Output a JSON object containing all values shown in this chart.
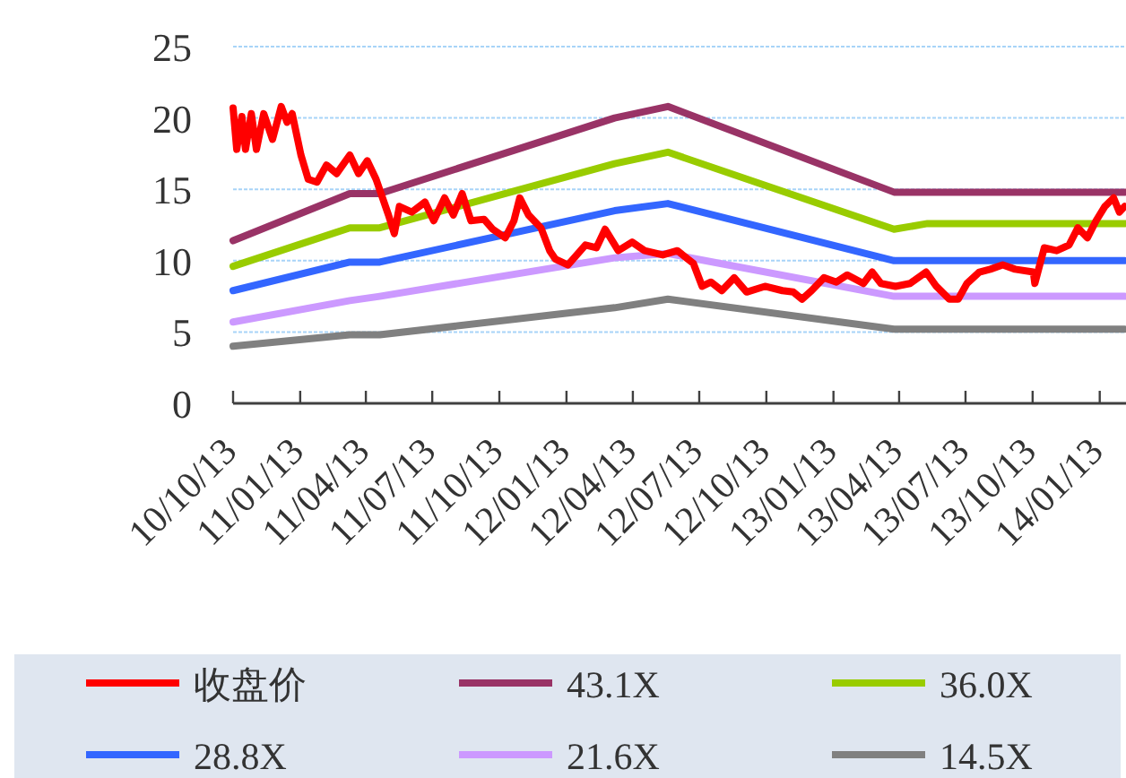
{
  "chart_data": {
    "type": "line",
    "xlim": [
      "2010-10-13",
      "2014-02-18"
    ],
    "ylim": [
      0,
      25
    ],
    "yticks": [
      0,
      5,
      10,
      15,
      20,
      25
    ],
    "xticks": [
      {
        "value": "2010-10-13",
        "label": "10/10/13"
      },
      {
        "value": "2011-01-13",
        "label": "11/01/13"
      },
      {
        "value": "2011-04-13",
        "label": "11/04/13"
      },
      {
        "value": "2011-07-13",
        "label": "11/07/13"
      },
      {
        "value": "2011-10-13",
        "label": "11/10/13"
      },
      {
        "value": "2012-01-13",
        "label": "12/01/13"
      },
      {
        "value": "2012-04-13",
        "label": "12/04/13"
      },
      {
        "value": "2012-07-13",
        "label": "12/07/13"
      },
      {
        "value": "2012-10-13",
        "label": "12/10/13"
      },
      {
        "value": "2013-01-13",
        "label": "13/01/13"
      },
      {
        "value": "2013-04-13",
        "label": "13/04/13"
      },
      {
        "value": "2013-07-13",
        "label": "13/07/13"
      },
      {
        "value": "2013-10-13",
        "label": "13/10/13"
      },
      {
        "value": "2014-01-13",
        "label": "14/01/13"
      }
    ],
    "grid": "y",
    "legend": "bottom",
    "series": [
      {
        "name": "收盘价",
        "color": "#ff0000",
        "x": [
          "2010-10-13",
          "2010-10-18",
          "2010-10-25",
          "2010-10-30",
          "2010-11-07",
          "2010-11-14",
          "2010-11-24",
          "2010-12-06",
          "2010-12-18",
          "2010-12-26",
          "2011-01-02",
          "2011-01-14",
          "2011-01-24",
          "2011-02-05",
          "2011-02-18",
          "2011-03-04",
          "2011-03-22",
          "2011-04-03",
          "2011-04-15",
          "2011-04-27",
          "2011-05-14",
          "2011-05-22",
          "2011-05-29",
          "2011-06-15",
          "2011-07-03",
          "2011-07-15",
          "2011-07-30",
          "2011-08-11",
          "2011-08-23",
          "2011-09-04",
          "2011-09-22",
          "2011-10-04",
          "2011-10-21",
          "2011-11-02",
          "2011-11-10",
          "2011-11-22",
          "2011-12-09",
          "2011-12-21",
          "2011-12-29",
          "2012-01-15",
          "2012-02-08",
          "2012-02-23",
          "2012-03-06",
          "2012-03-24",
          "2012-04-12",
          "2012-04-29",
          "2012-05-24",
          "2012-06-13",
          "2012-07-05",
          "2012-07-17",
          "2012-07-29",
          "2012-08-13",
          "2012-08-30",
          "2012-09-16",
          "2012-10-11",
          "2012-11-04",
          "2012-11-19",
          "2012-12-01",
          "2012-12-14",
          "2012-12-31",
          "2013-01-17",
          "2013-02-01",
          "2013-02-23",
          "2013-03-07",
          "2013-03-19",
          "2013-04-08",
          "2013-04-28",
          "2013-05-20",
          "2013-06-03",
          "2013-06-21",
          "2013-07-03",
          "2013-07-15",
          "2013-08-01",
          "2013-08-16",
          "2013-09-02",
          "2013-09-19",
          "2013-10-14",
          "2013-10-16",
          "2013-10-29",
          "2013-11-15",
          "2013-12-02",
          "2013-12-14",
          "2013-12-27",
          "2014-01-08",
          "2014-01-20",
          "2014-02-01",
          "2014-02-09",
          "2014-02-16"
        ],
        "values": [
          20.7,
          17.8,
          20.1,
          17.8,
          20.3,
          17.8,
          20.3,
          18.5,
          20.8,
          19.7,
          20.3,
          17.4,
          15.7,
          15.5,
          16.7,
          16.1,
          17.4,
          16.1,
          17.0,
          15.7,
          13.2,
          11.9,
          13.8,
          13.4,
          14.1,
          12.8,
          14.4,
          13.2,
          14.7,
          12.8,
          12.9,
          12.2,
          11.6,
          12.8,
          14.4,
          13.2,
          12.3,
          10.7,
          10.1,
          9.7,
          11.1,
          10.9,
          12.2,
          10.7,
          11.3,
          10.7,
          10.4,
          10.7,
          9.8,
          8.2,
          8.5,
          7.9,
          8.8,
          7.8,
          8.2,
          7.9,
          7.8,
          7.3,
          7.9,
          8.8,
          8.5,
          9.0,
          8.4,
          9.2,
          8.4,
          8.2,
          8.4,
          9.2,
          8.2,
          7.3,
          7.3,
          8.4,
          9.2,
          9.4,
          9.7,
          9.4,
          9.2,
          8.4,
          10.9,
          10.7,
          11.1,
          12.3,
          11.6,
          12.8,
          13.8,
          14.4,
          13.4,
          13.8
        ]
      },
      {
        "name": "43.1X",
        "color": "#993366",
        "x": [
          "2010-10-13",
          "2011-03-22",
          "2011-05-02",
          "2012-03-19",
          "2012-05-31",
          "2013-04-06",
          "2013-05-22",
          "2014-02-16"
        ],
        "values": [
          11.4,
          14.7,
          14.7,
          20.0,
          20.8,
          14.8,
          14.8,
          14.8
        ]
      },
      {
        "name": "36.0X",
        "color": "#99cc00",
        "x": [
          "2010-10-13",
          "2011-03-22",
          "2011-05-02",
          "2012-03-19",
          "2012-05-31",
          "2013-04-06",
          "2013-05-22",
          "2014-02-16"
        ],
        "values": [
          9.6,
          12.3,
          12.3,
          16.8,
          17.6,
          12.2,
          12.6,
          12.6
        ]
      },
      {
        "name": "28.8X",
        "color": "#3366ff",
        "x": [
          "2010-10-13",
          "2011-03-22",
          "2011-05-02",
          "2012-03-19",
          "2012-05-31",
          "2013-04-06",
          "2013-05-22",
          "2014-02-16"
        ],
        "values": [
          7.9,
          9.9,
          9.9,
          13.5,
          14.0,
          10.0,
          10.0,
          10.0
        ]
      },
      {
        "name": "21.6X",
        "color": "#cc99ff",
        "x": [
          "2010-10-13",
          "2011-03-22",
          "2011-05-02",
          "2012-03-19",
          "2012-05-31",
          "2013-04-06",
          "2013-05-22",
          "2014-02-16"
        ],
        "values": [
          5.7,
          7.2,
          7.5,
          10.2,
          10.5,
          7.5,
          7.5,
          7.5
        ]
      },
      {
        "name": "14.5X",
        "color": "#808080",
        "x": [
          "2010-10-13",
          "2011-03-22",
          "2011-05-02",
          "2012-03-19",
          "2012-05-31",
          "2013-04-06",
          "2013-05-22",
          "2014-02-16"
        ],
        "values": [
          4.0,
          4.8,
          4.8,
          6.7,
          7.3,
          5.2,
          5.2,
          5.2
        ]
      }
    ]
  }
}
